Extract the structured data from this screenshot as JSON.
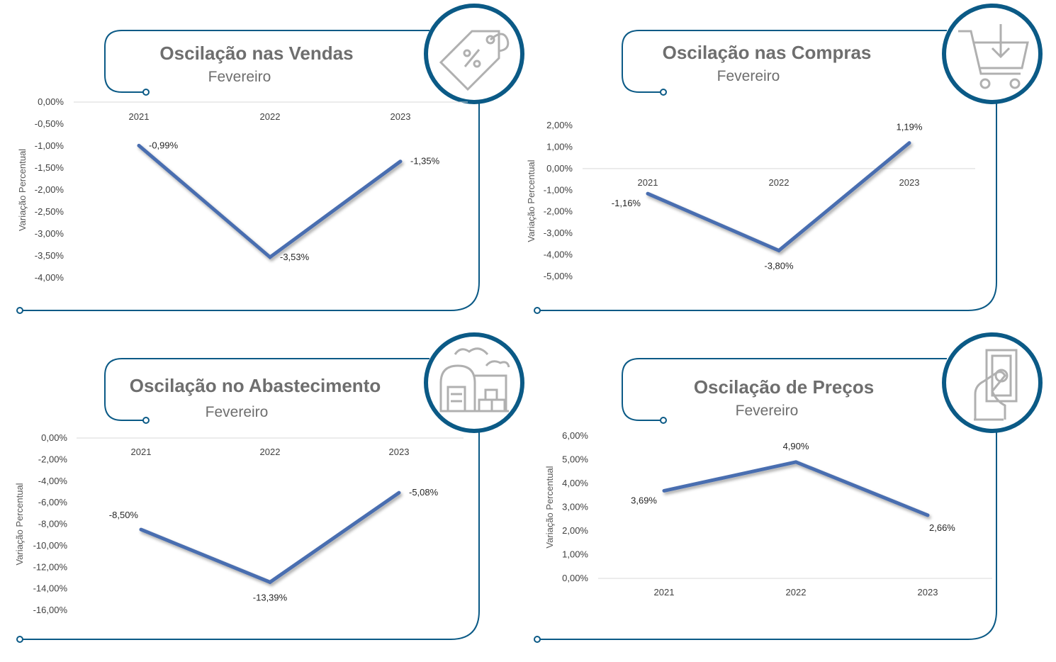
{
  "colors": {
    "frame": "#0b5a86",
    "line": "#4a6eb0",
    "icon": "#b0b0b0",
    "grid": "#d9d9d9"
  },
  "chart_data": [
    {
      "type": "line",
      "title": "Oscilação nas Vendas",
      "subtitle": "Fevereiro",
      "icon": "price-tag-percent-icon",
      "ylabel": "Variação Percentual",
      "categories": [
        "2021",
        "2022",
        "2023"
      ],
      "values": [
        -0.99,
        -3.53,
        -1.35
      ],
      "data_labels": [
        "-0,99%",
        "-3,53%",
        "-1,35%"
      ],
      "yticks": [
        "0,00%",
        "-0,50%",
        "-1,00%",
        "-1,50%",
        "-2,00%",
        "-2,50%",
        "-3,00%",
        "-3,50%",
        "-4,00%"
      ],
      "ylim": [
        -4.0,
        0.0
      ],
      "label_pos": [
        "right",
        "right",
        "right"
      ]
    },
    {
      "type": "line",
      "title": "Oscilação nas Compras",
      "subtitle": "Fevereiro",
      "icon": "shopping-cart-icon",
      "ylabel": "Variação Percentual",
      "categories": [
        "2021",
        "2022",
        "2023"
      ],
      "values": [
        -1.16,
        -3.8,
        1.19
      ],
      "data_labels": [
        "-1,16%",
        "-3,80%",
        "1,19%"
      ],
      "yticks": [
        "2,00%",
        "1,00%",
        "0,00%",
        "-1,00%",
        "-2,00%",
        "-3,00%",
        "-4,00%",
        "-5,00%"
      ],
      "ylim": [
        -5.0,
        2.0
      ],
      "label_pos": [
        "left",
        "below",
        "above"
      ]
    },
    {
      "type": "line",
      "title": "Oscilação no Abastecimento",
      "subtitle": "Fevereiro",
      "icon": "warehouse-icon",
      "ylabel": "Variação Percentual",
      "categories": [
        "2021",
        "2022",
        "2023"
      ],
      "values": [
        -8.5,
        -13.39,
        -5.08
      ],
      "data_labels": [
        "-8,50%",
        "-13,39%",
        "-5,08%"
      ],
      "yticks": [
        "0,00%",
        "-2,00%",
        "-4,00%",
        "-6,00%",
        "-8,00%",
        "-10,00%",
        "-12,00%",
        "-14,00%",
        "-16,00%"
      ],
      "ylim": [
        -16.0,
        0.0
      ],
      "label_pos": [
        "above-left",
        "below",
        "right"
      ]
    },
    {
      "type": "line",
      "title": "Oscilação de Preços",
      "subtitle": "Fevereiro",
      "icon": "hand-money-icon",
      "ylabel": "Variação Percentual",
      "categories": [
        "2021",
        "2022",
        "2023"
      ],
      "values": [
        3.69,
        4.9,
        2.66
      ],
      "data_labels": [
        "3,69%",
        "4,90%",
        "2,66%"
      ],
      "yticks": [
        "6,00%",
        "5,00%",
        "4,00%",
        "3,00%",
        "2,00%",
        "1,00%",
        "0,00%"
      ],
      "ylim": [
        0.0,
        6.0
      ],
      "label_pos": [
        "left",
        "above",
        "below-right"
      ]
    }
  ]
}
